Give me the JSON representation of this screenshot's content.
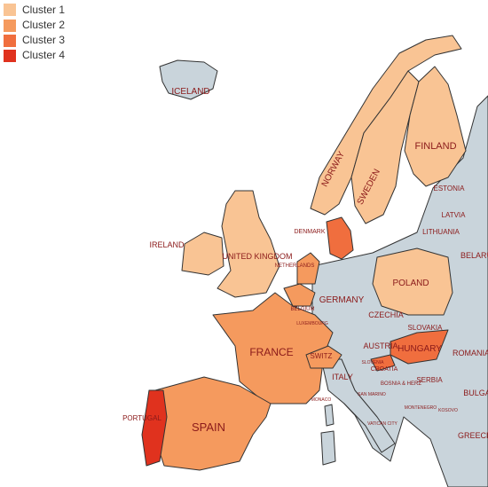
{
  "legend": [
    {
      "label": "Cluster 1",
      "color": "#f9c494"
    },
    {
      "label": "Cluster 2",
      "color": "#f59a5e"
    },
    {
      "label": "Cluster 3",
      "color": "#f06e3e"
    },
    {
      "label": "Cluster 4",
      "color": "#e0321e"
    }
  ],
  "land_color": "#c9d4db",
  "countries": [
    "ICELAND",
    "NORWAY",
    "SWEDEN",
    "FINLAND",
    "ESTONIA",
    "LATVIA",
    "LITHUANIA",
    "BELARUS",
    "DENMARK",
    "IRELAND",
    "UNITED KINGDOM",
    "NETHERLANDS",
    "BELGIUM",
    "LUXEMBOURG",
    "GERMANY",
    "POLAND",
    "CZECHIA",
    "SLOVAKIA",
    "AUSTRIA",
    "HUNGARY",
    "ROMANIA",
    "FRANCE",
    "SWITZ",
    "ITALY",
    "CROATIA",
    "SLOVENIA",
    "BOSNIA & HERZ",
    "SERBIA",
    "BULGARIA",
    "MONACO",
    "SAN MARINO",
    "MONTENEGRO",
    "KOSOVO",
    "VATICAN CITY",
    "GREECE",
    "SPAIN",
    "PORTUGAL"
  ]
}
